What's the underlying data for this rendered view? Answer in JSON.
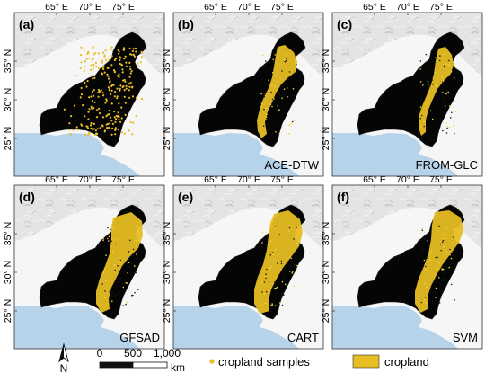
{
  "panels": [
    {
      "id": "a",
      "label": "(a)",
      "method": "",
      "type": "samples"
    },
    {
      "id": "b",
      "label": "(b)",
      "method": "ACE-DTW",
      "type": "classified",
      "variant": 0
    },
    {
      "id": "c",
      "label": "(c)",
      "method": "FROM-GLC",
      "type": "classified",
      "variant": 1
    },
    {
      "id": "d",
      "label": "(d)",
      "method": "GFSAD",
      "type": "classified",
      "variant": 2
    },
    {
      "id": "e",
      "label": "(e)",
      "method": "CART",
      "type": "classified",
      "variant": 3
    },
    {
      "id": "f",
      "label": "(f)",
      "method": "SVM",
      "type": "classified",
      "variant": 4
    }
  ],
  "axes": {
    "lon_ticks": [
      "65° E",
      "70° E",
      "75° E"
    ],
    "lat_ticks": [
      "35° N",
      "30° N",
      "25° N"
    ]
  },
  "north_arrow": {
    "label": "N"
  },
  "scale_bar": {
    "ticks": [
      "0",
      "500",
      "1,000"
    ],
    "unit": "km"
  },
  "legend": {
    "samples_label": "cropland samples",
    "cropland_label": "cropland"
  },
  "colors": {
    "cropland": "#e6bd22",
    "country": "#050505",
    "sea": "#b7d3ea",
    "terrain": "#e4e4e4",
    "background": "#ffffff"
  }
}
